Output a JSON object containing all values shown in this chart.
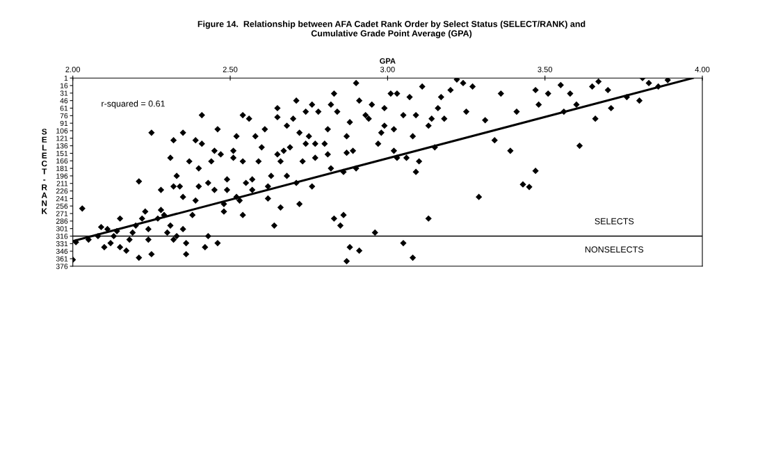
{
  "chart_data": {
    "type": "scatter",
    "title": "Figure 14.  Relationship between AFA Cadet Rank Order by Select Status (SELECT/RANK) and\nCumulative Grade Point Average (GPA)",
    "xlabel": "GPA",
    "ylabel": "SELECT - RANK",
    "xlim": [
      2,
      4
    ],
    "ylim": [
      376,
      1
    ],
    "xticks": [
      {
        "value": 2,
        "label": "2.00"
      },
      {
        "value": 2.5,
        "label": "2.50"
      },
      {
        "value": 3,
        "label": "3.00"
      },
      {
        "value": 3.5,
        "label": "3.50"
      },
      {
        "value": 4,
        "label": "4.00"
      }
    ],
    "yticks": [
      1,
      16,
      31,
      46,
      61,
      76,
      91,
      106,
      121,
      136,
      151,
      166,
      181,
      196,
      211,
      226,
      241,
      256,
      271,
      286,
      301,
      316,
      331,
      346,
      361,
      376
    ],
    "grid": false,
    "marker": "diamond",
    "legend": false,
    "series": [
      {
        "color": "#000000",
        "x": [
          2.0,
          2.01,
          2.05,
          2.03,
          2.08,
          2.09,
          2.11,
          2.1,
          2.12,
          2.13,
          2.14,
          2.15,
          2.15,
          2.17,
          2.18,
          2.19,
          2.2,
          2.21,
          2.21,
          2.22,
          2.23,
          2.24,
          2.24,
          2.25,
          2.25,
          2.27,
          2.28,
          2.28,
          2.29,
          2.3,
          2.31,
          2.32,
          2.31,
          2.32,
          2.32,
          2.33,
          2.33,
          2.34,
          2.35,
          2.35,
          2.35,
          2.36,
          2.36,
          2.37,
          2.38,
          2.39,
          2.39,
          2.4,
          2.4,
          2.41,
          2.41,
          2.42,
          2.43,
          2.43,
          2.44,
          2.45,
          2.45,
          2.46,
          2.46,
          2.47,
          2.48,
          2.48,
          2.49,
          2.49,
          2.51,
          2.51,
          2.52,
          2.52,
          2.53,
          2.54,
          2.54,
          2.54,
          2.55,
          2.56,
          2.57,
          2.57,
          2.58,
          2.59,
          2.6,
          2.61,
          2.62,
          2.62,
          2.63,
          2.64,
          2.65,
          2.65,
          2.65,
          2.66,
          2.66,
          2.67,
          2.68,
          2.68,
          2.69,
          2.7,
          2.71,
          2.71,
          2.72,
          2.72,
          2.73,
          2.74,
          2.74,
          2.75,
          2.76,
          2.76,
          2.77,
          2.77,
          2.78,
          2.8,
          2.81,
          2.81,
          2.82,
          2.82,
          2.83,
          2.83,
          2.84,
          2.85,
          2.86,
          2.86,
          2.87,
          2.87,
          2.88,
          2.89,
          2.9,
          2.9,
          2.91,
          2.93,
          2.94,
          2.95,
          2.97,
          2.98,
          2.99,
          2.99,
          3.01,
          3.02,
          3.02,
          3.03,
          3.03,
          3.05,
          3.06,
          3.07,
          3.08,
          3.09,
          3.09,
          3.1,
          3.11,
          3.13,
          3.14,
          3.15,
          3.16,
          3.17,
          3.18,
          3.2,
          3.22,
          3.24,
          3.25,
          3.27,
          3.29,
          3.31,
          3.34,
          3.36,
          3.39,
          3.41,
          3.43,
          3.45,
          3.47,
          3.47,
          3.48,
          3.51,
          3.55,
          3.56,
          3.58,
          3.6,
          3.61,
          3.65,
          3.66,
          3.67,
          3.7,
          3.71,
          3.76,
          3.8,
          3.83,
          3.86,
          3.81,
          3.89,
          2.87,
          2.88,
          2.91,
          2.96,
          3.05,
          3.13,
          3.08
        ],
        "values": [
          363,
          328,
          323,
          261,
          316,
          298,
          302,
          338,
          330,
          316,
          306,
          338,
          281,
          345,
          323,
          309,
          295,
          359,
          207,
          281,
          267,
          302,
          323,
          352,
          110,
          281,
          264,
          224,
          274,
          309,
          295,
          217,
          160,
          323,
          125,
          196,
          316,
          217,
          238,
          302,
          110,
          352,
          330,
          167,
          274,
          125,
          245,
          217,
          181,
          75,
          132,
          338,
          210,
          316,
          167,
          146,
          224,
          103,
          330,
          153,
          252,
          267,
          224,
          203,
          160,
          146,
          117,
          238,
          245,
          167,
          274,
          75,
          210,
          82,
          203,
          224,
          117,
          167,
          139,
          103,
          241,
          217,
          196,
          295,
          79,
          153,
          61,
          167,
          259,
          146,
          96,
          196,
          139,
          82,
          210,
          46,
          252,
          110,
          167,
          132,
          68,
          117,
          54,
          217,
          132,
          160,
          68,
          132,
          103,
          153,
          54,
          181,
          32,
          281,
          68,
          295,
          274,
          188,
          150,
          117,
          89,
          146,
          11,
          181,
          46,
          75,
          82,
          54,
          132,
          110,
          61,
          96,
          32,
          103,
          146,
          160,
          32,
          75,
          160,
          39,
          117,
          188,
          75,
          167,
          18,
          96,
          82,
          139,
          61,
          39,
          82,
          25,
          4,
          11,
          68,
          18,
          238,
          85,
          125,
          32,
          146,
          68,
          213,
          218,
          186,
          25,
          54,
          32,
          15,
          68,
          32,
          54,
          136,
          18,
          82,
          8,
          25,
          61,
          39,
          46,
          11,
          18,
          1,
          5,
          366,
          338,
          345,
          309,
          330,
          281,
          359
        ]
      },
      {
        "type": "line",
        "color": "#000000",
        "marker": "none",
        "x": [
          2.0,
          3.97
        ],
        "values": [
          326,
          1
        ]
      }
    ],
    "ref_lines": [
      {
        "axis": "y",
        "value": 316,
        "color": "#000000"
      }
    ],
    "annotations": [
      "r-squared = 0.61",
      "SELECTS",
      "NONSELECTS"
    ]
  }
}
